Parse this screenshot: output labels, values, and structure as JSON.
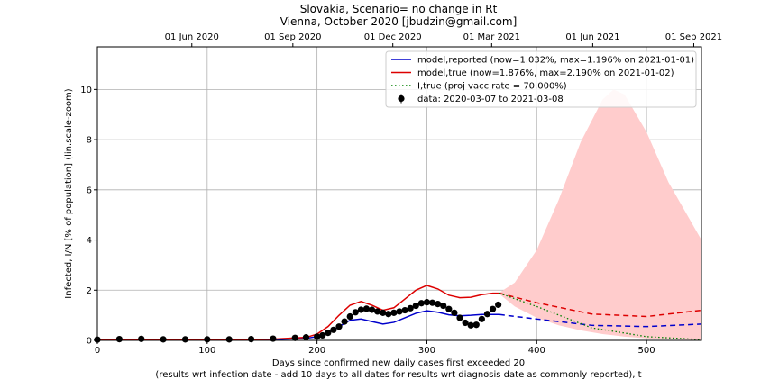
{
  "chart_data": {
    "type": "line",
    "title_line1": "Slovakia, Scenario= no change in Rt",
    "title_line2": "Vienna, October 2020 [jbudzin@gmail.com]",
    "xlabel": "Days since confirmed new daily cases first exceeded 20",
    "xlabel_line2": "(results wrt infection date - add 10 days to all dates for results wrt diagnosis date as commonly reported), t",
    "ylabel": "Infected, I/N [% of population] (lin.scale-zoom)",
    "xlim": [
      0,
      550
    ],
    "ylim": [
      0,
      11.7
    ],
    "grid": true,
    "legend_position": "top-right",
    "x_ticks": [
      0,
      100,
      200,
      300,
      400,
      500
    ],
    "x_tick_labels": [
      "0",
      "100",
      "200",
      "300",
      "400",
      "500"
    ],
    "y_ticks": [
      0,
      2,
      4,
      6,
      8,
      10
    ],
    "y_tick_labels": [
      "0",
      "2",
      "4",
      "6",
      "8",
      "10"
    ],
    "top_axis_ticks": [
      {
        "x": 86,
        "label": "01 Jun 2020"
      },
      {
        "x": 178,
        "label": "01 Sep 2020"
      },
      {
        "x": 269,
        "label": "01 Dec 2020"
      },
      {
        "x": 359,
        "label": "01 Mar 2021"
      },
      {
        "x": 451,
        "label": "01 Jun 2021"
      },
      {
        "x": 543,
        "label": "01 Sep 2021"
      }
    ],
    "legend": [
      {
        "label": "model,reported (now=1.032%, max=1.196% on 2021-01-01)",
        "color": "#0000cc",
        "style": "solid"
      },
      {
        "label": "model,true (now=1.876%, max=2.190% on 2021-01-02)",
        "color": "#dd0000",
        "style": "solid"
      },
      {
        "label": "I,true (proj vacc rate = 70.000%)",
        "color": "#008000",
        "style": "dotted"
      },
      {
        "label": "data: 2020-03-07 to 2021-03-08",
        "color": "#000000",
        "style": "marker"
      }
    ],
    "series": [
      {
        "name": "model,reported (now=1.032%, max=1.196% on 2021-01-01)",
        "color": "#0000cc",
        "x": [
          0,
          100,
          160,
          190,
          200,
          210,
          220,
          230,
          240,
          250,
          260,
          270,
          280,
          290,
          300,
          310,
          320,
          330,
          340,
          350,
          360,
          366
        ],
        "y": [
          0.02,
          0.02,
          0.03,
          0.08,
          0.15,
          0.3,
          0.55,
          0.8,
          0.85,
          0.75,
          0.65,
          0.72,
          0.9,
          1.08,
          1.18,
          1.12,
          1.02,
          0.98,
          1.0,
          1.03,
          1.03,
          1.03
        ]
      },
      {
        "name": "model,reported projection",
        "color": "#0000cc",
        "dashed": true,
        "x": [
          366,
          400,
          450,
          500,
          550
        ],
        "y": [
          1.03,
          0.85,
          0.6,
          0.55,
          0.65
        ]
      },
      {
        "name": "model,true (now=1.876%, max=2.190% on 2021-01-02)",
        "color": "#dd0000",
        "x": [
          0,
          100,
          160,
          190,
          200,
          210,
          220,
          230,
          240,
          250,
          260,
          270,
          280,
          290,
          300,
          310,
          320,
          330,
          340,
          350,
          360,
          366
        ],
        "y": [
          0.03,
          0.03,
          0.05,
          0.12,
          0.25,
          0.55,
          1.0,
          1.4,
          1.55,
          1.4,
          1.2,
          1.3,
          1.65,
          2.0,
          2.19,
          2.05,
          1.8,
          1.7,
          1.72,
          1.82,
          1.88,
          1.88
        ]
      },
      {
        "name": "model,true projection",
        "color": "#dd0000",
        "dashed": true,
        "x": [
          366,
          400,
          450,
          500,
          550
        ],
        "y": [
          1.88,
          1.5,
          1.05,
          0.95,
          1.2
        ]
      },
      {
        "name": "I,true (proj vacc rate = 70.000%)",
        "color": "#008000",
        "dotted": true,
        "x": [
          366,
          400,
          450,
          500,
          550
        ],
        "y": [
          1.88,
          1.35,
          0.5,
          0.15,
          0.03
        ]
      }
    ],
    "data_points": {
      "name": "data: 2020-03-07 to 2021-03-08",
      "x": [
        0,
        20,
        40,
        60,
        80,
        100,
        120,
        140,
        160,
        180,
        190,
        200,
        205,
        210,
        215,
        220,
        225,
        230,
        235,
        240,
        245,
        250,
        255,
        260,
        265,
        270,
        275,
        280,
        285,
        290,
        295,
        300,
        305,
        310,
        315,
        320,
        325,
        330,
        335,
        340,
        345,
        350,
        355,
        360,
        365
      ],
      "y": [
        0.03,
        0.05,
        0.06,
        0.04,
        0.04,
        0.04,
        0.04,
        0.05,
        0.07,
        0.1,
        0.12,
        0.15,
        0.2,
        0.3,
        0.42,
        0.55,
        0.75,
        0.95,
        1.12,
        1.22,
        1.26,
        1.22,
        1.15,
        1.1,
        1.05,
        1.1,
        1.15,
        1.2,
        1.28,
        1.38,
        1.48,
        1.52,
        1.5,
        1.45,
        1.38,
        1.25,
        1.1,
        0.9,
        0.7,
        0.6,
        0.62,
        0.85,
        1.05,
        1.25,
        1.42
      ]
    },
    "uncertainty_band": {
      "color": "#ffcccc",
      "x": [
        366,
        380,
        400,
        420,
        440,
        460,
        470,
        480,
        500,
        520,
        550
      ],
      "upper": [
        1.9,
        2.3,
        3.6,
        5.6,
        7.9,
        9.6,
        10.0,
        9.8,
        8.3,
        6.3,
        4.0
      ],
      "lower": [
        1.85,
        1.35,
        0.9,
        0.6,
        0.4,
        0.25,
        0.2,
        0.15,
        0.08,
        0.04,
        0.02
      ]
    }
  }
}
